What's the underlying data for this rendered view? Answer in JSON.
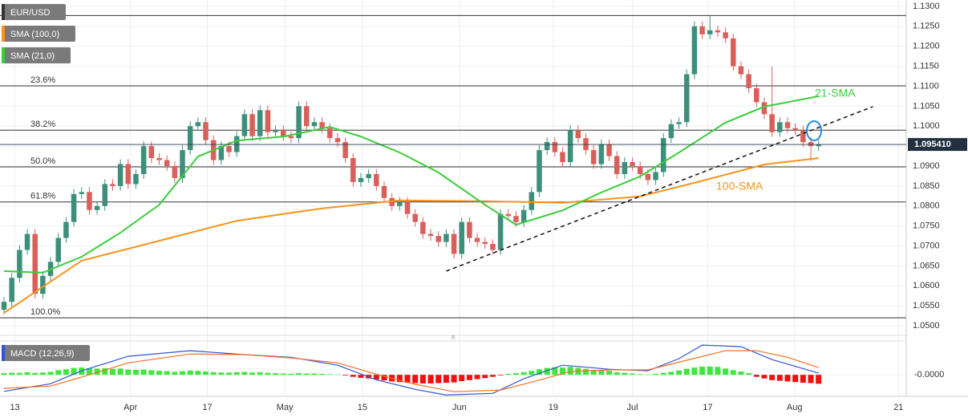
{
  "chart_data": {
    "type": "candlestick",
    "symbol": "EUR/USD",
    "xlim": [
      -0.52,
      116.3
    ],
    "xticks": [
      {
        "value": 1.4,
        "label": "13"
      },
      {
        "value": 16.3,
        "label": "Apr"
      },
      {
        "value": 26.2,
        "label": "17"
      },
      {
        "value": 36.2,
        "label": "May"
      },
      {
        "value": 46.2,
        "label": "15"
      },
      {
        "value": 58.7,
        "label": "Jun"
      },
      {
        "value": 70.8,
        "label": "19"
      },
      {
        "value": 81,
        "label": "Jul"
      },
      {
        "value": 90.7,
        "label": "17"
      },
      {
        "value": 101.9,
        "label": "Aug"
      },
      {
        "value": 115.3,
        "label": "21"
      }
    ],
    "ylim": [
      1.0482,
      1.1316
    ],
    "yticks": [
      {
        "value": 1.05,
        "label": "1.0500"
      },
      {
        "value": 1.055,
        "label": "1.0550"
      },
      {
        "value": 1.06,
        "label": "1.0600"
      },
      {
        "value": 1.065,
        "label": "1.0650"
      },
      {
        "value": 1.07,
        "label": "1.0700"
      },
      {
        "value": 1.075,
        "label": "1.0750"
      },
      {
        "value": 1.08,
        "label": "1.0800"
      },
      {
        "value": 1.085,
        "label": "1.0850"
      },
      {
        "value": 1.09,
        "label": "1.0900"
      },
      {
        "value": 1.095,
        "label": "1.0950"
      },
      {
        "value": 1.1,
        "label": "1.1000"
      },
      {
        "value": 1.105,
        "label": "1.1050"
      },
      {
        "value": 1.11,
        "label": "1.1100"
      },
      {
        "value": 1.115,
        "label": "1.1150"
      },
      {
        "value": 1.12,
        "label": "1.1200"
      },
      {
        "value": 1.125,
        "label": "1.1250"
      },
      {
        "value": 1.13,
        "label": "1.1300"
      }
    ],
    "grid": true,
    "candles": {
      "up_color": "#3d8f7b",
      "down_color": "#d9605a",
      "open": [
        1.054,
        1.056,
        1.062,
        1.069,
        1.073,
        1.058,
        1.0625,
        1.066,
        1.072,
        1.076,
        1.083,
        1.0835,
        1.079,
        1.08,
        1.0855,
        1.085,
        1.0905,
        1.0855,
        1.088,
        1.095,
        1.092,
        1.0915,
        1.09,
        1.087,
        1.094,
        1.1,
        1.101,
        1.0965,
        1.0915,
        1.095,
        1.0935,
        1.0975,
        1.103,
        1.0975,
        1.104,
        1.0985,
        1.099,
        1.0975,
        1.097,
        1.105,
        1.1,
        1.101,
        1.0995,
        1.097,
        1.096,
        1.092,
        1.086,
        1.087,
        1.088,
        1.085,
        1.082,
        1.08,
        1.081,
        1.078,
        1.076,
        1.073,
        1.0725,
        1.071,
        1.073,
        1.068,
        1.076,
        1.072,
        1.071,
        1.0705,
        1.069,
        1.078,
        1.0775,
        1.076,
        1.079,
        1.0835,
        1.094,
        1.096,
        1.0935,
        1.091,
        1.099,
        1.097,
        1.094,
        1.0905,
        1.0955,
        1.0925,
        1.088,
        1.091,
        1.09,
        1.088,
        1.0865,
        1.0885,
        1.097,
        1.1005,
        1.101,
        1.113,
        1.125,
        1.123,
        1.124,
        1.1235,
        1.122,
        1.115,
        1.113,
        1.1095,
        1.106,
        1.103,
        1.0985,
        1.101,
        1.0995,
        1.099,
        1.096,
        1.095
      ],
      "high": [
        1.0572,
        1.0632,
        1.0702,
        1.0742,
        1.0742,
        1.0637,
        1.0672,
        1.0732,
        1.0772,
        1.0842,
        1.0847,
        1.0847,
        1.0812,
        1.0867,
        1.0867,
        1.0917,
        1.0917,
        1.0892,
        1.0962,
        1.0962,
        1.0932,
        1.0927,
        1.0912,
        1.0952,
        1.1012,
        1.1022,
        1.1022,
        1.0977,
        1.0962,
        1.0962,
        1.0987,
        1.1042,
        1.1042,
        1.1052,
        1.1052,
        1.1002,
        1.1002,
        1.0987,
        1.1062,
        1.1062,
        1.1022,
        1.1022,
        1.1007,
        1.0982,
        1.0972,
        1.0932,
        1.0882,
        1.0892,
        1.0892,
        1.0862,
        1.0832,
        1.0822,
        1.0822,
        1.0792,
        1.0772,
        1.0742,
        1.0737,
        1.0742,
        1.0742,
        1.0772,
        1.0772,
        1.0732,
        1.0722,
        1.0717,
        1.0792,
        1.0792,
        1.0787,
        1.0802,
        1.0847,
        1.0952,
        1.0972,
        1.0972,
        1.0947,
        1.1002,
        1.1002,
        1.0982,
        1.0952,
        1.0967,
        1.0967,
        1.0937,
        1.0922,
        1.0922,
        1.0912,
        1.0892,
        1.0897,
        1.0982,
        1.1017,
        1.1022,
        1.1142,
        1.1262,
        1.1262,
        1.1276,
        1.1252,
        1.1247,
        1.1232,
        1.1162,
        1.1142,
        1.1107,
        1.1072,
        1.1149,
        1.1022,
        1.1022,
        1.1007,
        1.1002,
        1.0972,
        1.0966
      ],
      "low": [
        1.0528,
        1.0548,
        1.0608,
        1.0678,
        1.0568,
        1.0568,
        1.0613,
        1.0648,
        1.0708,
        1.0748,
        1.0818,
        1.0778,
        1.0778,
        1.0788,
        1.0838,
        1.0838,
        1.0843,
        1.0843,
        1.0868,
        1.0908,
        1.0903,
        1.0888,
        1.0858,
        1.0858,
        1.0928,
        1.0988,
        1.0953,
        1.0903,
        1.0903,
        1.0923,
        1.0923,
        1.0963,
        1.0963,
        1.0963,
        1.0973,
        1.0973,
        1.0963,
        1.0958,
        1.0958,
        1.0988,
        1.0988,
        1.0983,
        1.0958,
        1.0948,
        1.0908,
        1.0848,
        1.0848,
        1.0858,
        1.0838,
        1.0808,
        1.0788,
        1.0788,
        1.0768,
        1.0748,
        1.0718,
        1.0713,
        1.0698,
        1.0698,
        1.0668,
        1.0668,
        1.0708,
        1.0698,
        1.0693,
        1.0678,
        1.0678,
        1.0763,
        1.0748,
        1.0748,
        1.0778,
        1.0823,
        1.0928,
        1.0923,
        1.0898,
        1.0898,
        1.0958,
        1.0928,
        1.0893,
        1.0893,
        1.0913,
        1.0868,
        1.0868,
        1.0888,
        1.0868,
        1.0853,
        1.0853,
        1.0873,
        1.0958,
        1.0993,
        1.0998,
        1.1118,
        1.1218,
        1.1218,
        1.1223,
        1.1208,
        1.1138,
        1.1118,
        1.1083,
        1.1048,
        1.1018,
        1.0973,
        1.0973,
        1.0983,
        1.0978,
        1.0948,
        1.0913,
        1.0938
      ],
      "close": [
        1.056,
        1.062,
        1.069,
        1.073,
        1.058,
        1.0625,
        1.066,
        1.072,
        1.076,
        1.083,
        1.0835,
        1.079,
        1.08,
        1.0855,
        1.085,
        1.0905,
        1.0855,
        1.088,
        1.095,
        1.092,
        1.0915,
        1.09,
        1.087,
        1.094,
        1.1,
        1.101,
        1.0965,
        1.0915,
        1.095,
        1.0935,
        1.0975,
        1.103,
        1.0975,
        1.104,
        1.0985,
        1.099,
        1.0975,
        1.097,
        1.105,
        1.1,
        1.101,
        1.0995,
        1.097,
        1.096,
        1.092,
        1.086,
        1.087,
        1.088,
        1.085,
        1.082,
        1.08,
        1.081,
        1.078,
        1.076,
        1.073,
        1.0725,
        1.071,
        1.073,
        1.068,
        1.076,
        1.072,
        1.071,
        1.0705,
        1.069,
        1.078,
        1.0775,
        1.076,
        1.079,
        1.0835,
        1.094,
        1.096,
        1.0935,
        1.091,
        1.099,
        1.097,
        1.094,
        1.0905,
        1.0955,
        1.0925,
        1.088,
        1.091,
        1.09,
        1.088,
        1.0865,
        1.0885,
        1.097,
        1.1005,
        1.101,
        1.113,
        1.125,
        1.123,
        1.124,
        1.1235,
        1.122,
        1.115,
        1.113,
        1.1095,
        1.106,
        1.103,
        1.0985,
        1.101,
        1.0995,
        1.099,
        1.096,
        1.095,
        1.0954
      ]
    },
    "series": [
      {
        "name": "SMA (100,0)",
        "color": "#f7931e",
        "annotation": "100-SMA",
        "x": [
          0,
          10,
          20,
          30,
          41,
          51,
          62,
          72,
          82,
          89,
          98,
          105
        ],
        "values": [
          1.0532,
          1.0663,
          1.0713,
          1.0763,
          1.0794,
          1.0814,
          1.0812,
          1.0808,
          1.0824,
          1.0858,
          1.0904,
          1.092
        ]
      },
      {
        "name": "SMA (21,0)",
        "color": "#3ccc3c",
        "annotation": "21-SMA",
        "x": [
          0,
          5,
          10,
          15,
          20,
          25,
          30,
          36,
          42,
          46,
          51,
          56,
          62,
          66,
          72,
          77,
          82,
          87,
          93,
          98,
          105
        ],
        "values": [
          1.0637,
          1.0633,
          1.0673,
          1.0733,
          1.0803,
          1.0924,
          1.0964,
          1.0974,
          1.0998,
          1.0974,
          1.0934,
          1.0884,
          1.0803,
          1.0753,
          1.0789,
          1.0834,
          1.0874,
          1.0934,
          1.1009,
          1.1049,
          1.1075
        ]
      }
    ],
    "trendline": {
      "x": [
        57,
        112
      ],
      "values": [
        1.0637,
        1.1049
      ]
    },
    "range_high": 1.1277,
    "fib_levels": [
      {
        "value": 1.1101,
        "label": "23.6%"
      },
      {
        "value": 1.099,
        "label": "38.2%"
      },
      {
        "value": 1.0898,
        "label": "50.0%"
      },
      {
        "value": 1.081,
        "label": "61.8%"
      },
      {
        "value": 1.052,
        "label": "100.0%"
      }
    ],
    "last_price": {
      "value": 1.09541,
      "label": "1.095410"
    },
    "macd": {
      "name": "MACD (12,26,9)",
      "ylim": [
        -0.0065,
        0.0095
      ],
      "yticks": [
        {
          "value": 0,
          "label": "-0.0000"
        }
      ],
      "up_color": "#3ee63e",
      "down_color": "#f01010",
      "histogram": [
        0.0005,
        0.0006,
        0.0006,
        0.0008,
        0.0006,
        0.0007,
        0.0009,
        0.0014,
        0.0017,
        0.0021,
        0.0022,
        0.002,
        0.0019,
        0.002,
        0.0018,
        0.0019,
        0.0016,
        0.0015,
        0.0016,
        0.0014,
        0.0012,
        0.0011,
        0.0009,
        0.0011,
        0.0013,
        0.0012,
        0.001,
        0.0008,
        0.0007,
        0.0007,
        0.0008,
        0.0009,
        0.0007,
        0.0008,
        0.0006,
        0.0005,
        0.0004,
        0.0003,
        0.0005,
        0.0004,
        0.0004,
        0.0003,
        0.0002,
        0.0001,
        -0.0002,
        -0.0006,
        -0.0009,
        -0.0011,
        -0.0014,
        -0.0017,
        -0.002,
        -0.0022,
        -0.0024,
        -0.0025,
        -0.0026,
        -0.0026,
        -0.0025,
        -0.0024,
        -0.0023,
        -0.0019,
        -0.0016,
        -0.0013,
        -0.001,
        -0.0006,
        -0.0002,
        0.0003,
        0.0005,
        0.0008,
        0.0012,
        0.0017,
        0.0021,
        0.0023,
        0.0022,
        0.0024,
        0.0021,
        0.0018,
        0.0015,
        0.0014,
        0.0012,
        0.0008,
        0.0006,
        0.0004,
        0.0002,
        0.0001,
        0.0003,
        0.0006,
        0.0009,
        0.0013,
        0.0018,
        0.0022,
        0.0025,
        0.0025,
        0.0024,
        0.0019,
        0.0014,
        0.001,
        0.0005,
        -0.0006,
        -0.0011,
        -0.0016,
        -0.0018,
        -0.002,
        -0.0022,
        -0.0024,
        -0.0025,
        -0.0027
      ],
      "lines": [
        {
          "color": "#2f55d4",
          "x": [
            0,
            6,
            10,
            16,
            24,
            31,
            37,
            43,
            48,
            53,
            57,
            63,
            67,
            72,
            78,
            83,
            87,
            90,
            95,
            99,
            105
          ],
          "values": [
            -0.005,
            -0.0027,
            0.0012,
            0.0056,
            0.0073,
            0.0061,
            0.0053,
            0.0029,
            -0.0015,
            -0.0044,
            -0.0061,
            -0.0056,
            -0.0012,
            0.0029,
            0.0017,
            0.0012,
            0.0049,
            0.009,
            0.0085,
            0.0046,
            0.0005
          ]
        },
        {
          "color": "#f37021",
          "x": [
            0,
            6,
            10,
            16,
            24,
            31,
            37,
            43,
            48,
            53,
            58,
            64,
            68,
            73,
            78,
            83,
            88,
            93,
            97,
            101,
            105
          ],
          "values": [
            -0.0041,
            -0.0034,
            -0.0007,
            0.0036,
            0.0063,
            0.0061,
            0.0051,
            0.0036,
            0.0002,
            -0.0029,
            -0.0051,
            -0.0046,
            -0.0022,
            0.001,
            0.0015,
            0.0015,
            0.0044,
            0.0073,
            0.0073,
            0.0053,
            0.0022
          ]
        }
      ]
    }
  }
}
